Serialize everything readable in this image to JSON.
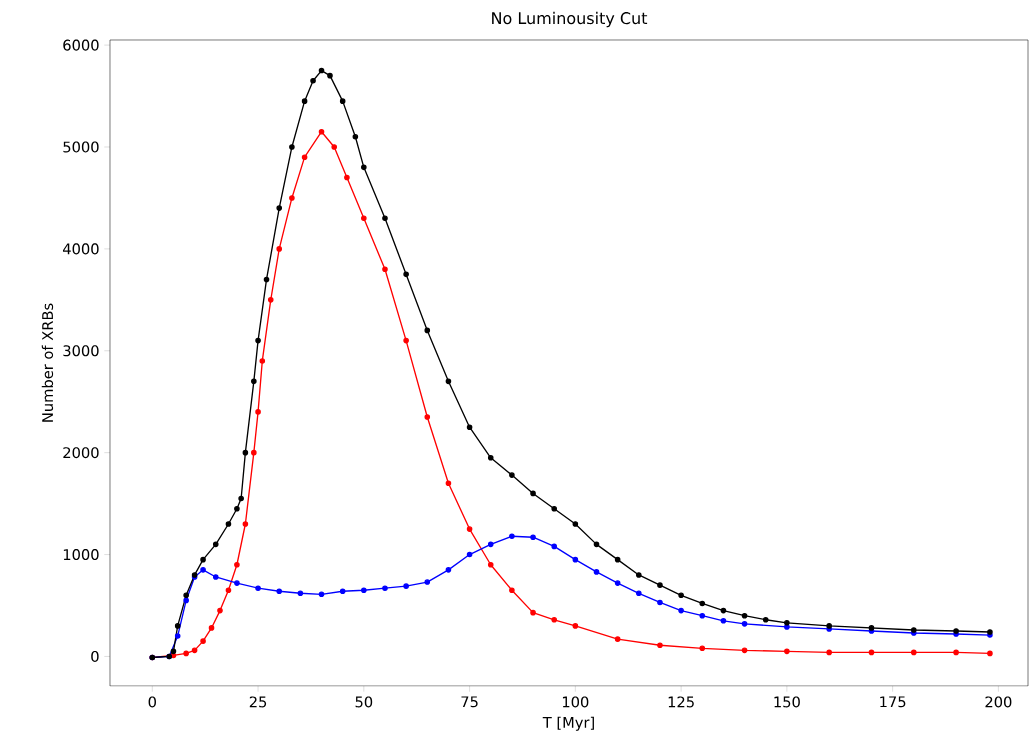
{
  "chart_data": {
    "type": "line",
    "title": "No Luminousity Cut",
    "xlabel": "T [Myr]",
    "ylabel": "Number of XRBs",
    "xlim": [
      -10,
      207
    ],
    "ylim": [
      -290,
      6050
    ],
    "xticks": [
      0,
      25,
      50,
      75,
      100,
      125,
      150,
      175,
      200
    ],
    "yticks": [
      0,
      1000,
      2000,
      3000,
      4000,
      5000,
      6000
    ],
    "grid": false,
    "marker": "circle",
    "line_style": "solid",
    "series": [
      {
        "color": "#ff0000",
        "x": [
          0,
          5,
          8,
          10,
          12,
          14,
          16,
          18,
          20,
          22,
          24,
          25,
          26,
          28,
          30,
          33,
          36,
          40,
          43,
          46,
          50,
          55,
          60,
          65,
          70,
          75,
          80,
          85,
          90,
          95,
          100,
          110,
          120,
          130,
          140,
          150,
          160,
          170,
          180,
          190,
          198
        ],
        "values": [
          -10,
          10,
          30,
          60,
          150,
          280,
          450,
          650,
          900,
          1300,
          2000,
          2400,
          2900,
          3500,
          4000,
          4500,
          4900,
          5150,
          5000,
          4700,
          4300,
          3800,
          3100,
          2350,
          1700,
          1250,
          900,
          650,
          430,
          360,
          300,
          170,
          110,
          80,
          60,
          50,
          40,
          40,
          40,
          40,
          30
        ]
      },
      {
        "color": "#0000ff",
        "x": [
          0,
          4,
          6,
          8,
          10,
          12,
          15,
          20,
          25,
          30,
          35,
          40,
          45,
          50,
          55,
          60,
          65,
          70,
          75,
          80,
          85,
          90,
          95,
          100,
          105,
          110,
          115,
          120,
          125,
          130,
          135,
          140,
          150,
          160,
          170,
          180,
          190,
          198
        ],
        "values": [
          -10,
          0,
          200,
          550,
          780,
          850,
          780,
          720,
          670,
          640,
          620,
          610,
          640,
          650,
          670,
          690,
          730,
          850,
          1000,
          1100,
          1180,
          1170,
          1080,
          950,
          830,
          720,
          620,
          530,
          450,
          400,
          350,
          320,
          290,
          270,
          250,
          230,
          220,
          210
        ]
      },
      {
        "color": "#000000",
        "x": [
          0,
          4,
          5,
          6,
          8,
          10,
          12,
          15,
          18,
          20,
          21,
          22,
          24,
          25,
          27,
          30,
          33,
          36,
          38,
          40,
          42,
          45,
          48,
          50,
          55,
          60,
          65,
          70,
          75,
          80,
          85,
          90,
          95,
          100,
          105,
          110,
          115,
          120,
          125,
          130,
          135,
          140,
          145,
          150,
          160,
          170,
          180,
          190,
          198
        ],
        "values": [
          -10,
          0,
          50,
          300,
          600,
          800,
          950,
          1100,
          1300,
          1450,
          1550,
          2000,
          2700,
          3100,
          3700,
          4400,
          5000,
          5450,
          5650,
          5750,
          5700,
          5450,
          5100,
          4800,
          4300,
          3750,
          3200,
          2700,
          2250,
          1950,
          1780,
          1600,
          1450,
          1300,
          1100,
          950,
          800,
          700,
          600,
          520,
          450,
          400,
          360,
          330,
          300,
          280,
          260,
          250,
          240
        ]
      }
    ]
  }
}
